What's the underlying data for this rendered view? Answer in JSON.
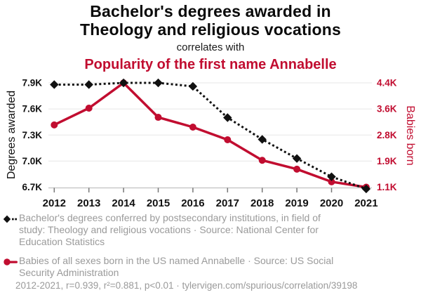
{
  "colors": {
    "red": "#c10d30",
    "black": "#111111",
    "legend_gray": "#9a9a9a"
  },
  "header": {
    "title_lines": [
      "Bachelor's degrees awarded in",
      "Theology and religious vocations"
    ],
    "connector": "correlates with",
    "subtitle": "Popularity of the first name Annabelle"
  },
  "chart_data": {
    "type": "line",
    "title": "Bachelor's degrees awarded in Theology and religious vocations correlates with Popularity of the first name Annabelle",
    "x": [
      2012,
      2013,
      2014,
      2015,
      2016,
      2017,
      2018,
      2019,
      2020,
      2021
    ],
    "series": [
      {
        "name": "Bachelor's degrees conferred by postsecondary institutions, in field of study: Theology and religious vocations",
        "source": "National Center for Education Statistics",
        "axis": "left",
        "color": "#111111",
        "style": "dotted",
        "marker": "diamond",
        "values": [
          7880,
          7880,
          7900,
          7900,
          7860,
          7500,
          7250,
          7030,
          6820,
          6680
        ]
      },
      {
        "name": "Babies of all sexes born in the US named Annabelle",
        "source": "US Social Security Administration",
        "axis": "right",
        "color": "#c10d30",
        "style": "solid",
        "marker": "circle",
        "values": [
          3070,
          3600,
          4400,
          3310,
          3000,
          2600,
          1950,
          1670,
          1270,
          1100
        ]
      }
    ],
    "left_axis": {
      "label": "Degrees awarded",
      "tick_values": [
        7900,
        7600,
        7300,
        7000,
        6700
      ],
      "tick_labels": [
        "7.9K",
        "7.6K",
        "7.3K",
        "7.0K",
        "6.7K"
      ]
    },
    "right_axis": {
      "label": "Babies born",
      "tick_values": [
        4400,
        3575,
        2750,
        1925,
        1100
      ],
      "tick_labels": [
        "4.4K",
        "3.6K",
        "2.8K",
        "1.9K",
        "1.1K"
      ]
    },
    "x_range": [
      2012,
      2021
    ],
    "grid": "horizontal",
    "legend_position": "bottom"
  },
  "legend": {
    "entries": [
      {
        "lines": [
          "Bachelor's degrees conferred by postsecondary institutions, in field of",
          "study: Theology and religious vocations · Source: National Center for",
          "Education Statistics"
        ]
      },
      {
        "lines": [
          "Babies of all sexes born in the US named Annabelle · Source: US Social",
          "Security Administration"
        ]
      }
    ]
  },
  "footer": {
    "text": "2012-2021, r=0.939, r²=0.881, p<0.01 · tylervigen.com/spurious/correlation/39198"
  }
}
